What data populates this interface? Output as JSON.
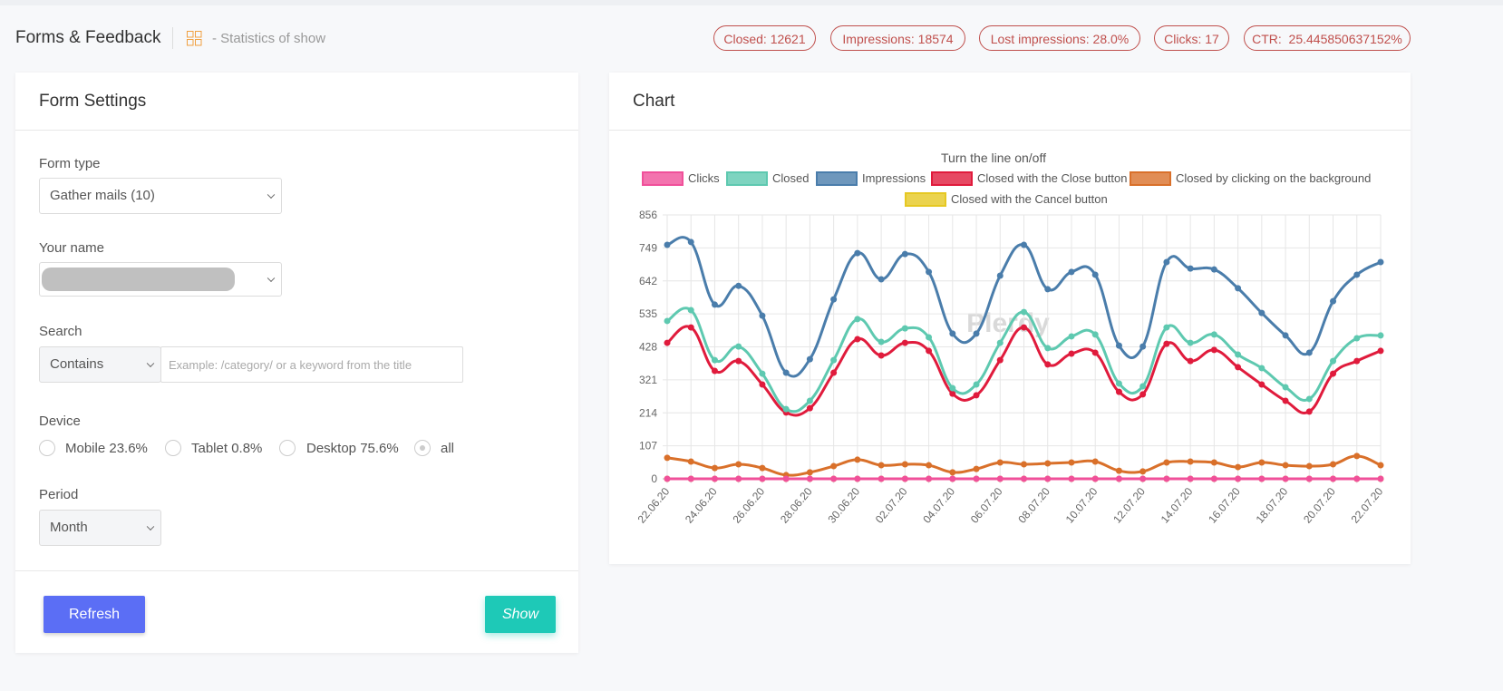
{
  "header": {
    "title": "Forms & Feedback",
    "subtitle": "- Statistics of show",
    "stats": [
      "Closed: 12621",
      "Impressions: 18574",
      "Lost impressions: 28.0%",
      "Clicks: 17",
      "CTR:  25.445850637152%"
    ]
  },
  "form": {
    "title": "Form Settings",
    "form_type_label": "Form type",
    "form_type_value": "Gather mails (10)",
    "name_label": "Your name",
    "search_label": "Search",
    "search_mode": "Contains",
    "search_placeholder": "Example: /category/ or a keyword from the title",
    "device_label": "Device",
    "devices": [
      "Mobile 23.6%",
      "Tablet 0.8%",
      "Desktop 75.6%",
      "all"
    ],
    "period_label": "Period",
    "period_value": "Month",
    "buttons": [
      "Refresh",
      "Show"
    ]
  },
  "chart_panel": {
    "title": "Chart",
    "watermark": "Plerdy"
  },
  "chart_data": {
    "type": "line",
    "legend_title": "Turn the line on/off",
    "categories": [
      "22.06.20",
      null,
      "24.06.20",
      null,
      "26.06.20",
      null,
      "28.06.20",
      null,
      "30.06.20",
      null,
      "02.07.20",
      null,
      "04.07.20",
      null,
      "06.07.20",
      null,
      "08.07.20",
      null,
      "10.07.20",
      null,
      "12.07.20",
      null,
      "14.07.20",
      null,
      "16.07.20",
      null,
      "18.07.20",
      null,
      "20.07.20",
      null,
      "22.07.20"
    ],
    "ylim": [
      0,
      856
    ],
    "yticks": [
      0,
      107,
      214,
      321,
      428,
      535,
      642,
      749,
      856
    ],
    "grid": true,
    "series": [
      {
        "name": "Clicks",
        "color": "#f0509a",
        "values": [
          0,
          0,
          0,
          0,
          0,
          0,
          0,
          0,
          0,
          0,
          0,
          0,
          0,
          0,
          0,
          0,
          0,
          0,
          0,
          0,
          0,
          0,
          0,
          0,
          0,
          0,
          0,
          0,
          0,
          0,
          0
        ]
      },
      {
        "name": "Closed",
        "color": "#5ec9b0",
        "values": [
          512,
          547,
          385,
          429,
          341,
          226,
          253,
          385,
          518,
          444,
          488,
          459,
          294,
          306,
          441,
          541,
          424,
          462,
          468,
          309,
          300,
          491,
          441,
          468,
          403,
          359,
          297,
          259,
          382,
          456,
          465
        ]
      },
      {
        "name": "Impressions",
        "color": "#4a7dab",
        "values": [
          759,
          768,
          565,
          626,
          529,
          344,
          388,
          582,
          732,
          647,
          729,
          671,
          471,
          471,
          659,
          759,
          615,
          671,
          662,
          432,
          429,
          703,
          682,
          679,
          618,
          538,
          465,
          409,
          576,
          662,
          703
        ]
      },
      {
        "name": "Closed with the Close button",
        "color": "#e01b3c",
        "values": [
          441,
          491,
          350,
          382,
          306,
          215,
          229,
          344,
          453,
          400,
          441,
          415,
          276,
          271,
          385,
          491,
          371,
          406,
          409,
          282,
          274,
          438,
          382,
          418,
          362,
          306,
          253,
          218,
          341,
          382,
          415
        ]
      },
      {
        "name": "Closed by clicking on the background",
        "color": "#d9702a",
        "values": [
          68,
          56,
          35,
          47,
          35,
          12,
          21,
          41,
          62,
          44,
          47,
          44,
          21,
          32,
          53,
          47,
          50,
          53,
          56,
          26,
          24,
          53,
          56,
          53,
          38,
          53,
          44,
          41,
          47,
          74,
          44
        ]
      },
      {
        "name": "Closed with the Cancel button",
        "color": "#e6c822",
        "values": [
          0,
          0,
          0,
          0,
          0,
          0,
          0,
          0,
          0,
          0,
          0,
          0,
          0,
          0,
          0,
          0,
          0,
          0,
          0,
          0,
          0,
          0,
          0,
          0,
          0,
          0,
          0,
          0,
          0,
          0,
          0
        ]
      }
    ]
  }
}
